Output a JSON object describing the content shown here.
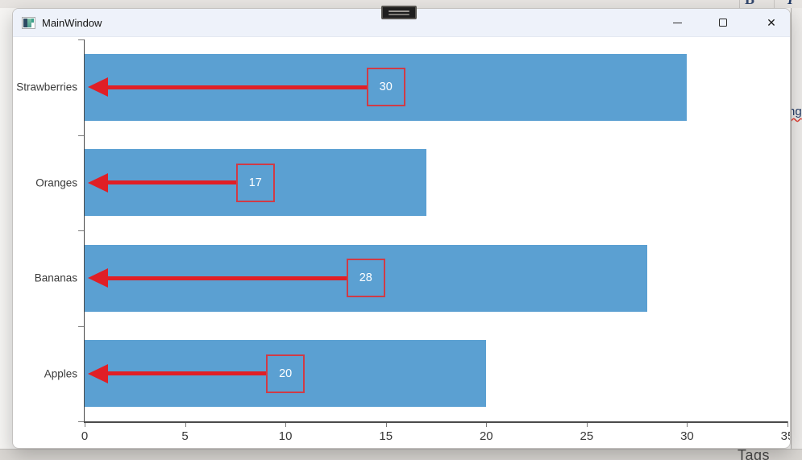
{
  "window": {
    "title": "MainWindow",
    "controls": {
      "minimize_label": "Minimize",
      "maximize_label": "Maximize",
      "close_label": "Close",
      "close_glyph": "✕"
    }
  },
  "background_fragments": {
    "toolbar_bold": "B",
    "toolbar_italic": "I",
    "clipped_text_right": "ng",
    "clipped_text_bottom": "Tags"
  },
  "chart_data": {
    "type": "bar",
    "orientation": "horizontal",
    "title": "",
    "categories": [
      "Strawberries",
      "Oranges",
      "Bananas",
      "Apples"
    ],
    "values": [
      30,
      17,
      28,
      20
    ],
    "xlim": [
      0,
      35
    ],
    "xticks": [
      0,
      5,
      10,
      15,
      20,
      25,
      30,
      35
    ],
    "grid": false,
    "legend": false,
    "annotations": {
      "style": "red left-pointing arrow from bar midpoint to axis with square value label box at bar midpoint",
      "labels": [
        "30",
        "17",
        "28",
        "20"
      ]
    },
    "colors": {
      "bar": "#5ba0d2",
      "arrow": "#e01f26",
      "box_border": "#d03b46",
      "box_text": "#ffffff",
      "axis": "#4b4b4b",
      "tick": "#7a7a7a",
      "label_text": "#3a3a3a"
    }
  }
}
